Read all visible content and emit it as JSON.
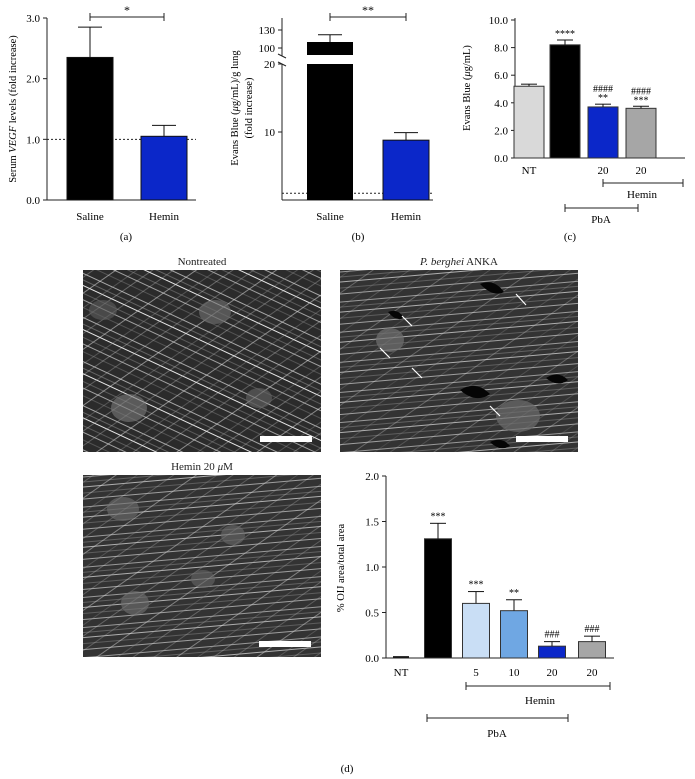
{
  "chart_data": [
    {
      "panel": "(a)",
      "type": "bar",
      "ylabel_parts": [
        "Serum ",
        "VEGF",
        " levels (fold increase)"
      ],
      "ylim": [
        0,
        3.0
      ],
      "yticks": [
        "0.0",
        "1.0",
        "2.0",
        "3.0"
      ],
      "categories": [
        "Saline",
        "Hemin"
      ],
      "values": [
        2.35,
        1.05
      ],
      "errors": [
        0.5,
        0.18
      ],
      "colors": [
        "#000000",
        "#0b27c9"
      ],
      "reference_line": 1.0,
      "significance": [
        {
          "from": "Saline",
          "to": "Hemin",
          "label": "*"
        }
      ]
    },
    {
      "panel": "(b)",
      "type": "bar",
      "ylabel_parts": [
        "Evans Blue (",
        "μ",
        "g/mL)/g lung"
      ],
      "ylabel2": "(fold increase)",
      "broken_axis": true,
      "ylim_upper": [
        100,
        130
      ],
      "yticks_upper": [
        "130",
        "100"
      ],
      "ylim_lower": [
        0,
        20
      ],
      "yticks_lower": [
        "20",
        "10"
      ],
      "categories": [
        "Saline",
        "Hemin"
      ],
      "values": [
        110,
        8.8
      ],
      "errors": [
        12,
        1.1
      ],
      "colors": [
        "#000000",
        "#0b27c9"
      ],
      "reference_line": 1.0,
      "significance": [
        {
          "from": "Saline",
          "to": "Hemin",
          "label": "**"
        }
      ]
    },
    {
      "panel": "(c)",
      "type": "bar",
      "ylabel_parts": [
        "Evans Blue (",
        "μ",
        "g/mL)"
      ],
      "ylim": [
        0,
        10.0
      ],
      "yticks": [
        "0.0",
        "2.0",
        "4.0",
        "6.0",
        "8.0",
        "10.0"
      ],
      "categories": [
        "NT",
        "",
        "20",
        "20"
      ],
      "values": [
        5.2,
        8.2,
        3.7,
        3.6
      ],
      "errors": [
        0.15,
        0.35,
        0.2,
        0.15
      ],
      "colors": [
        "#d9d9d9",
        "#000000",
        "#0b27c9",
        "#a6a6a6"
      ],
      "annotations": [
        [
          "****"
        ],
        [
          "####",
          "**"
        ],
        [
          "####",
          "***"
        ]
      ],
      "group_labels": {
        "hemin": "Hemin",
        "pba": "PbA"
      }
    },
    {
      "panel": "(d)",
      "type": "bar",
      "ylabel": "% OIJ area/total area",
      "ylim": [
        0,
        2.0
      ],
      "yticks": [
        "0.0",
        "0.5",
        "1.0",
        "1.5",
        "2.0"
      ],
      "categories": [
        "NT",
        "",
        "5",
        "10",
        "20",
        "20"
      ],
      "values": [
        0.01,
        1.31,
        0.6,
        0.52,
        0.13,
        0.18
      ],
      "errors": [
        0.005,
        0.17,
        0.13,
        0.12,
        0.05,
        0.06
      ],
      "colors": [
        "#d9d9d9",
        "#000000",
        "#c9def5",
        "#6fa7e3",
        "#0b27c9",
        "#a6a6a6"
      ],
      "annotations": [
        "",
        "***",
        "***",
        "**",
        "###",
        "###"
      ],
      "group_labels": {
        "hemin": "Hemin",
        "pba": "PbA"
      }
    }
  ],
  "images": [
    {
      "title": "Nontreated"
    },
    {
      "title_italic": "P. berghei",
      "title_rest": " ANKA"
    },
    {
      "title_prefix": "Hemin 20 ",
      "title_mu": "μ",
      "title_suffix": "M"
    }
  ],
  "panel_labels": {
    "a": "(a)",
    "b": "(b)",
    "c": "(c)",
    "d": "(d)"
  }
}
